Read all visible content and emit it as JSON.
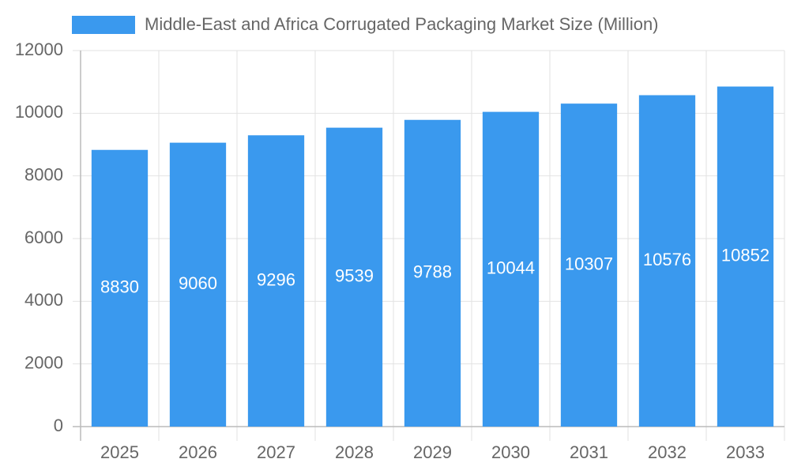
{
  "chart_data": {
    "type": "bar",
    "categories": [
      "2025",
      "2026",
      "2027",
      "2028",
      "2029",
      "2030",
      "2031",
      "2032",
      "2033"
    ],
    "series": [
      {
        "name": "Middle-East and Africa Corrugated Packaging Market Size (Million)",
        "color": "#3a99ee",
        "values": [
          8830,
          9060,
          9296,
          9539,
          9788,
          10044,
          10307,
          10576,
          10852
        ]
      }
    ],
    "ylim": [
      0,
      12000
    ],
    "yticks": [
      0,
      2000,
      4000,
      6000,
      8000,
      10000,
      12000
    ],
    "grid": true,
    "legend": "top",
    "data_labels": true
  }
}
